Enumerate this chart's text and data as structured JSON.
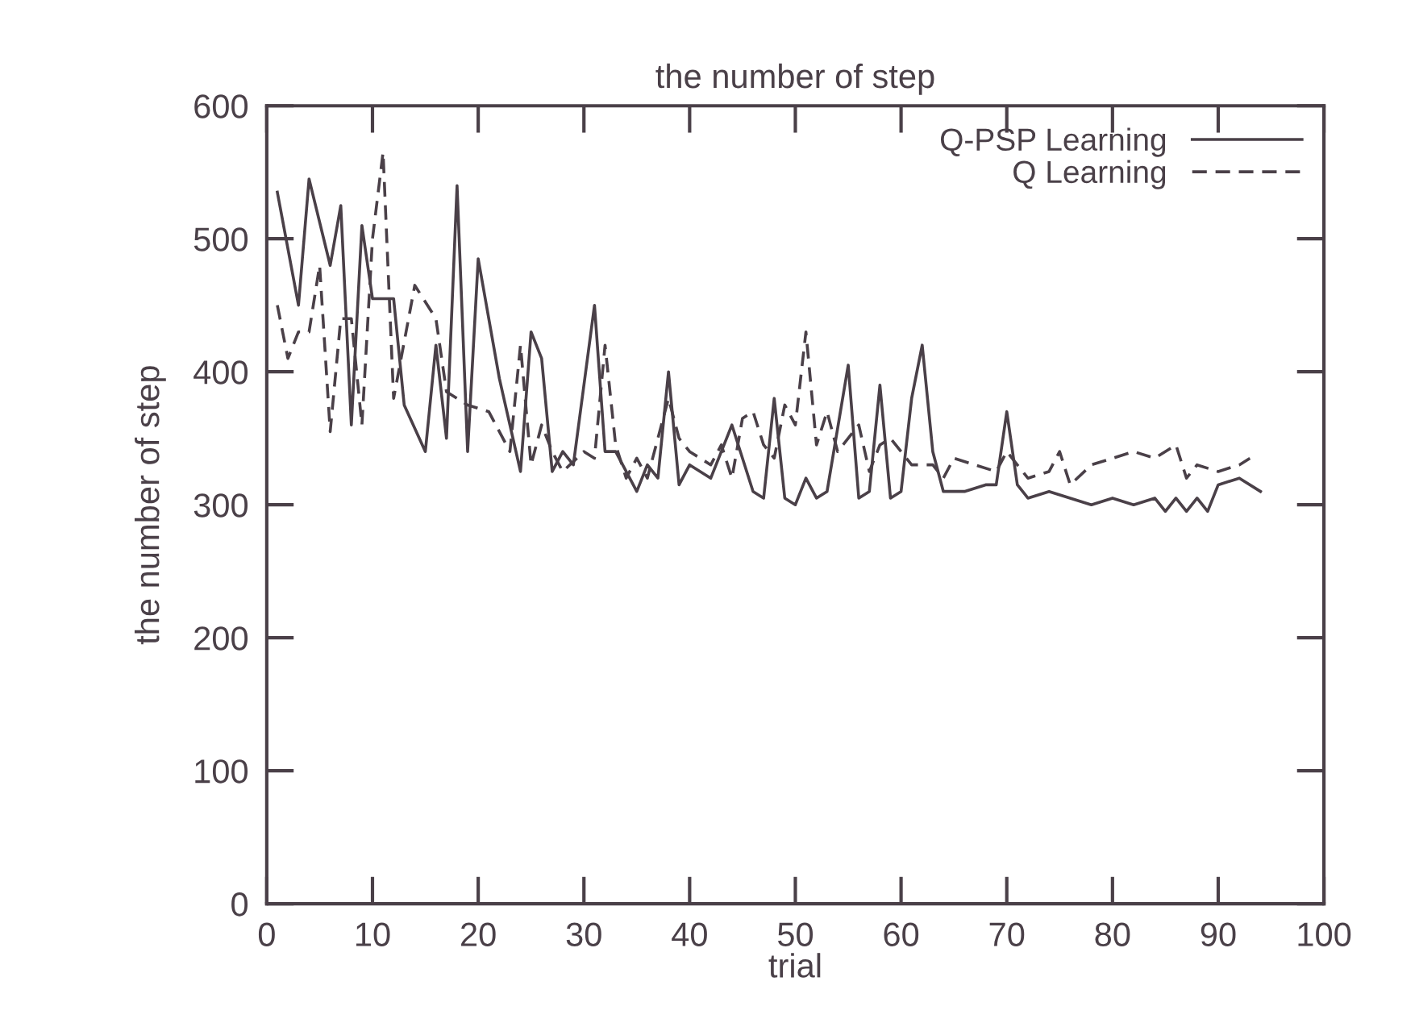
{
  "chart_data": {
    "type": "line",
    "title": "the number of step",
    "xlabel": "trial",
    "ylabel": "the number of step",
    "xlim": [
      0,
      100
    ],
    "ylim": [
      0,
      600
    ],
    "xticks": [
      0,
      10,
      20,
      30,
      40,
      50,
      60,
      70,
      80,
      90,
      100
    ],
    "yticks": [
      0,
      100,
      200,
      300,
      400,
      500,
      600
    ],
    "grid": false,
    "legend": "top right",
    "marker": "none",
    "series": [
      {
        "name": "Q-PSP Learning",
        "color": "#4a4048",
        "line_style": "solid",
        "x": [
          1,
          3,
          4,
          6,
          7,
          8,
          9,
          10,
          12,
          13,
          15,
          16,
          17,
          18,
          19,
          20,
          22,
          24,
          25,
          26,
          27,
          28,
          29,
          31,
          32,
          33,
          35,
          36,
          37,
          38,
          39,
          40,
          42,
          44,
          46,
          47,
          48,
          49,
          50,
          51,
          52,
          53,
          55,
          56,
          57,
          58,
          59,
          60,
          61,
          62,
          63,
          64,
          66,
          68,
          69,
          70,
          71,
          72,
          74,
          76,
          78,
          80,
          82,
          84,
          85,
          86,
          87,
          88,
          89,
          90,
          92,
          94
        ],
        "values": [
          535,
          450,
          545,
          480,
          525,
          360,
          510,
          455,
          455,
          375,
          340,
          420,
          350,
          540,
          340,
          485,
          395,
          325,
          430,
          410,
          325,
          340,
          330,
          450,
          340,
          340,
          310,
          330,
          320,
          400,
          315,
          330,
          320,
          360,
          310,
          305,
          380,
          305,
          300,
          320,
          305,
          310,
          405,
          305,
          310,
          390,
          305,
          310,
          380,
          420,
          340,
          310,
          310,
          315,
          315,
          370,
          315,
          305,
          310,
          305,
          300,
          305,
          300,
          305,
          295,
          305,
          295,
          305,
          295,
          315,
          320,
          310
        ]
      },
      {
        "name": "Q Learning",
        "color": "#4a4048",
        "line_style": "dashed",
        "x": [
          1,
          2,
          3,
          4,
          5,
          6,
          7,
          8,
          9,
          10,
          11,
          12,
          14,
          16,
          17,
          18,
          19,
          21,
          23,
          24,
          25,
          26,
          27,
          28,
          30,
          31,
          32,
          33,
          34,
          35,
          36,
          38,
          39,
          40,
          42,
          43,
          44,
          45,
          46,
          47,
          48,
          49,
          50,
          51,
          52,
          53,
          54,
          56,
          57,
          58,
          59,
          61,
          63,
          64,
          65,
          67,
          69,
          70,
          72,
          74,
          75,
          76,
          78,
          80,
          82,
          84,
          86,
          87,
          88,
          90,
          92,
          93
        ],
        "values": [
          450,
          410,
          430,
          430,
          480,
          355,
          440,
          440,
          360,
          500,
          565,
          380,
          465,
          440,
          385,
          380,
          375,
          370,
          340,
          420,
          330,
          360,
          340,
          325,
          340,
          335,
          420,
          345,
          320,
          335,
          320,
          380,
          350,
          340,
          330,
          345,
          320,
          365,
          370,
          345,
          335,
          375,
          360,
          430,
          345,
          370,
          340,
          360,
          325,
          345,
          350,
          330,
          330,
          320,
          335,
          330,
          325,
          340,
          320,
          325,
          340,
          315,
          330,
          335,
          340,
          335,
          345,
          320,
          330,
          325,
          330,
          335
        ]
      }
    ]
  }
}
